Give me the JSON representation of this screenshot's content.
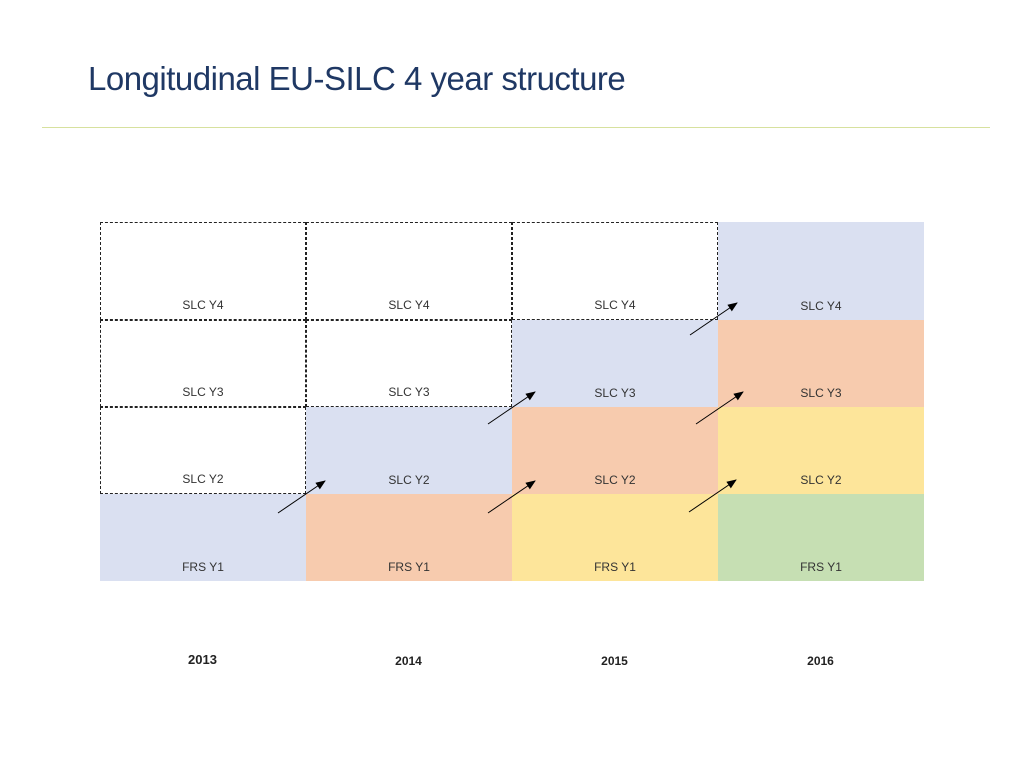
{
  "title": "Longitudinal EU-SILC 4 year structure",
  "years": [
    "2013",
    "2014",
    "2015",
    "2016"
  ],
  "rows": [
    {
      "label": "SLC Y4",
      "cells": [
        {
          "fill": "none",
          "dashed": true
        },
        {
          "fill": "none",
          "dashed": true
        },
        {
          "fill": "none",
          "dashed": true
        },
        {
          "fill": "#dae0f1",
          "dashed": false
        }
      ]
    },
    {
      "label": "SLC Y3",
      "cells": [
        {
          "fill": "none",
          "dashed": true
        },
        {
          "fill": "none",
          "dashed": true
        },
        {
          "fill": "#dae0f1",
          "dashed": false
        },
        {
          "fill": "#f7cbae",
          "dashed": false
        }
      ]
    },
    {
      "label": "SLC Y2",
      "cells": [
        {
          "fill": "none",
          "dashed": true
        },
        {
          "fill": "#dae0f1",
          "dashed": false
        },
        {
          "fill": "#f7cbae",
          "dashed": false
        },
        {
          "fill": "#fde59a",
          "dashed": false
        }
      ]
    },
    {
      "label": "FRS Y1",
      "cells": [
        {
          "fill": "#dae0f1",
          "dashed": false
        },
        {
          "fill": "#f7cbae",
          "dashed": false
        },
        {
          "fill": "#fde59a",
          "dashed": false
        },
        {
          "fill": "#c6dfb3",
          "dashed": false
        }
      ]
    }
  ],
  "colors": {
    "title": "#1f3864",
    "rule": "#d7e19e",
    "arrow": "#000000"
  }
}
